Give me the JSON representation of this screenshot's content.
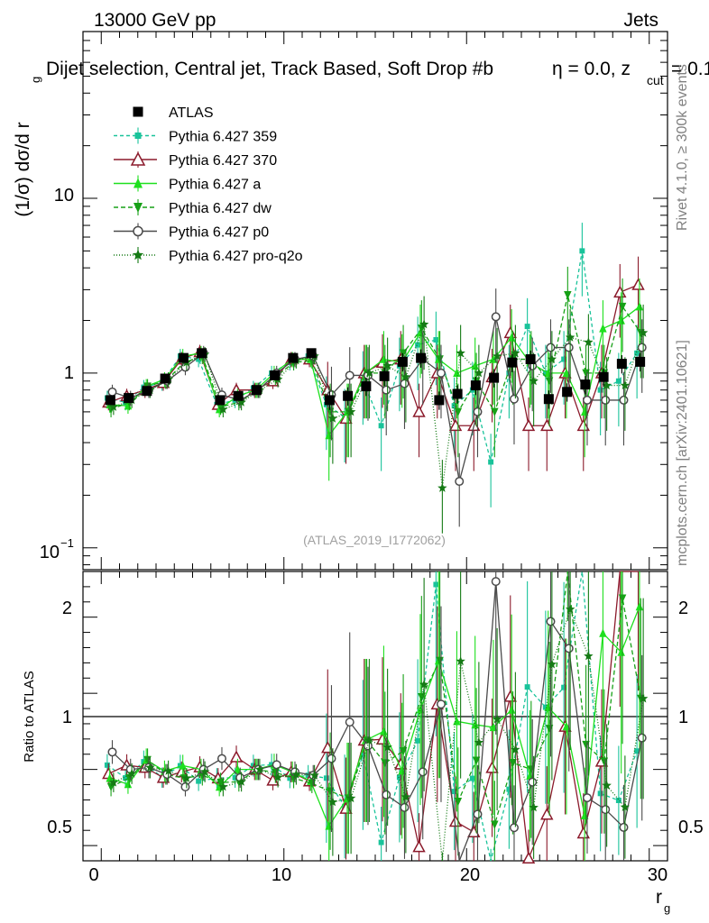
{
  "header": {
    "beam": "13000 GeV pp",
    "category": "Jets",
    "selection": "Dijet selection, Central jet, Track Based, Soft Drop #b",
    "selection_extra": "η = 0.0, z",
    "zcut_sub": "cut",
    "zcut_value": " = 0.1"
  },
  "side_labels": {
    "rivet": "Rivet 4.1.0, ≥ 300k events",
    "mcplots": "mcplots.cern.ch [arXiv:2401.10621]"
  },
  "watermark": "(ATLAS_2019_I1772062)",
  "axes": {
    "ylabel_main": "(1/σ) dσ/d r",
    "ylabel_sub": "g",
    "ylabel_ratio": "Ratio to ATLAS",
    "xlabel": "r",
    "xlabel_sub": "g",
    "main_ticks": [
      "10",
      "1",
      "10"
    ],
    "main_tick_exp": "−1",
    "ratio_ticks": [
      "2",
      "1",
      "0.5"
    ],
    "x_ticks": [
      "0",
      "10",
      "20",
      "30"
    ]
  },
  "legend": [
    {
      "label": "ATLAS",
      "color": "#000000",
      "marker": "square",
      "dash": ""
    },
    {
      "label": "Pythia 6.427 359",
      "color": "#19c39a",
      "marker": "smallsquare",
      "dash": "4,3"
    },
    {
      "label": "Pythia 6.427 370",
      "color": "#8b1a2b",
      "marker": "opentriangle",
      "dash": ""
    },
    {
      "label": "Pythia 6.427 a",
      "color": "#1ee01e",
      "marker": "triangle",
      "dash": ""
    },
    {
      "label": "Pythia 6.427 dw",
      "color": "#16a016",
      "marker": "downtriangle",
      "dash": "5,3"
    },
    {
      "label": "Pythia 6.427 p0",
      "color": "#4a4a4a",
      "marker": "opencircle",
      "dash": ""
    },
    {
      "label": "Pythia 6.427 pro-q2o",
      "color": "#157a15",
      "marker": "star",
      "dash": "1,2"
    }
  ],
  "chart_data": {
    "type": "line",
    "title": "Dijet selection, Central jet, Track Based, Soft Drop #b η = 0.0, z_cut = 0.1",
    "xlabel": "r_g",
    "ylabel": "(1/σ) dσ/d r_g",
    "xlim": [
      -1,
      31
    ],
    "ylim": [
      0.075,
      90
    ],
    "yscale": "log",
    "ratio_ylim": [
      0.4,
      2.3
    ],
    "x": [
      0.5,
      1.5,
      2.5,
      3.5,
      4.5,
      5.5,
      6.5,
      7.5,
      8.5,
      9.5,
      10.5,
      11.5,
      12.5,
      13.5,
      14.5,
      15.5,
      16.5,
      17.5,
      18.5,
      19.5,
      20.5,
      21.5,
      22.5,
      23.5,
      24.5,
      25.5,
      26.5,
      27.5,
      28.5,
      29.5
    ],
    "series": [
      {
        "name": "ATLAS",
        "values": [
          0.7,
          0.72,
          0.79,
          0.93,
          1.22,
          1.3,
          0.7,
          0.74,
          0.8,
          0.97,
          1.22,
          1.3,
          0.7,
          0.74,
          0.84,
          0.96,
          1.16,
          1.22,
          0.7,
          0.76,
          0.85,
          0.94,
          1.15,
          1.2,
          0.71,
          0.78,
          0.86,
          0.95,
          1.13,
          1.16
        ]
      },
      {
        "name": "Pythia 6.427 359",
        "values": [
          0.72,
          0.68,
          0.83,
          0.88,
          1.25,
          1.2,
          0.66,
          0.7,
          0.82,
          1.0,
          1.15,
          1.25,
          0.66,
          0.56,
          0.92,
          0.5,
          1.1,
          1.45,
          1.55,
          0.65,
          0.8,
          0.31,
          1.0,
          1.85,
          1.0,
          1.2,
          5.0,
          0.8,
          0.9,
          1.3
        ]
      },
      {
        "name": "Pythia 6.427 370",
        "values": [
          0.68,
          0.74,
          0.8,
          0.88,
          1.2,
          1.32,
          0.66,
          0.8,
          0.8,
          0.9,
          1.2,
          1.2,
          0.8,
          0.55,
          1.0,
          1.15,
          1.2,
          0.6,
          1.0,
          0.5,
          0.5,
          0.95,
          1.7,
          0.5,
          0.5,
          1.0,
          0.5,
          1.0,
          2.9,
          3.2
        ]
      },
      {
        "name": "Pythia 6.427 a",
        "values": [
          0.66,
          0.65,
          0.84,
          0.92,
          1.25,
          1.3,
          0.62,
          0.74,
          0.8,
          1.0,
          1.2,
          1.2,
          0.44,
          0.6,
          1.0,
          1.2,
          1.15,
          1.7,
          1.2,
          1.0,
          1.1,
          1.2,
          1.6,
          1.15,
          1.0,
          1.0,
          0.6,
          1.8,
          2.0,
          2.4
        ]
      },
      {
        "name": "Pythia 6.427 dw",
        "values": [
          0.62,
          0.68,
          0.84,
          0.9,
          1.15,
          1.25,
          0.64,
          0.68,
          0.8,
          0.95,
          1.15,
          1.18,
          0.6,
          0.6,
          1.0,
          1.0,
          1.3,
          1.8,
          1.2,
          0.6,
          0.9,
          0.6,
          1.2,
          1.2,
          0.9,
          2.8,
          1.0,
          1.0,
          2.4,
          1.7
        ]
      },
      {
        "name": "Pythia 6.427 p0",
        "values": [
          0.78,
          0.72,
          0.8,
          0.9,
          1.08,
          1.3,
          0.75,
          0.7,
          0.8,
          1.0,
          1.2,
          1.25,
          0.75,
          0.97,
          0.97,
          0.8,
          0.87,
          1.2,
          1.0,
          0.24,
          0.6,
          2.1,
          0.71,
          1.1,
          1.4,
          1.4,
          0.7,
          0.7,
          0.7,
          1.4
        ]
      },
      {
        "name": "Pythia 6.427 pro-q2o",
        "values": [
          0.64,
          0.7,
          0.8,
          0.92,
          1.15,
          1.28,
          0.62,
          0.68,
          0.8,
          0.92,
          1.18,
          1.25,
          0.55,
          0.6,
          1.0,
          1.1,
          0.95,
          1.9,
          0.22,
          1.3,
          1.0,
          1.25,
          1.3,
          0.9,
          1.2,
          1.6,
          1.5,
          0.85,
          0.85,
          1.7
        ]
      }
    ]
  }
}
